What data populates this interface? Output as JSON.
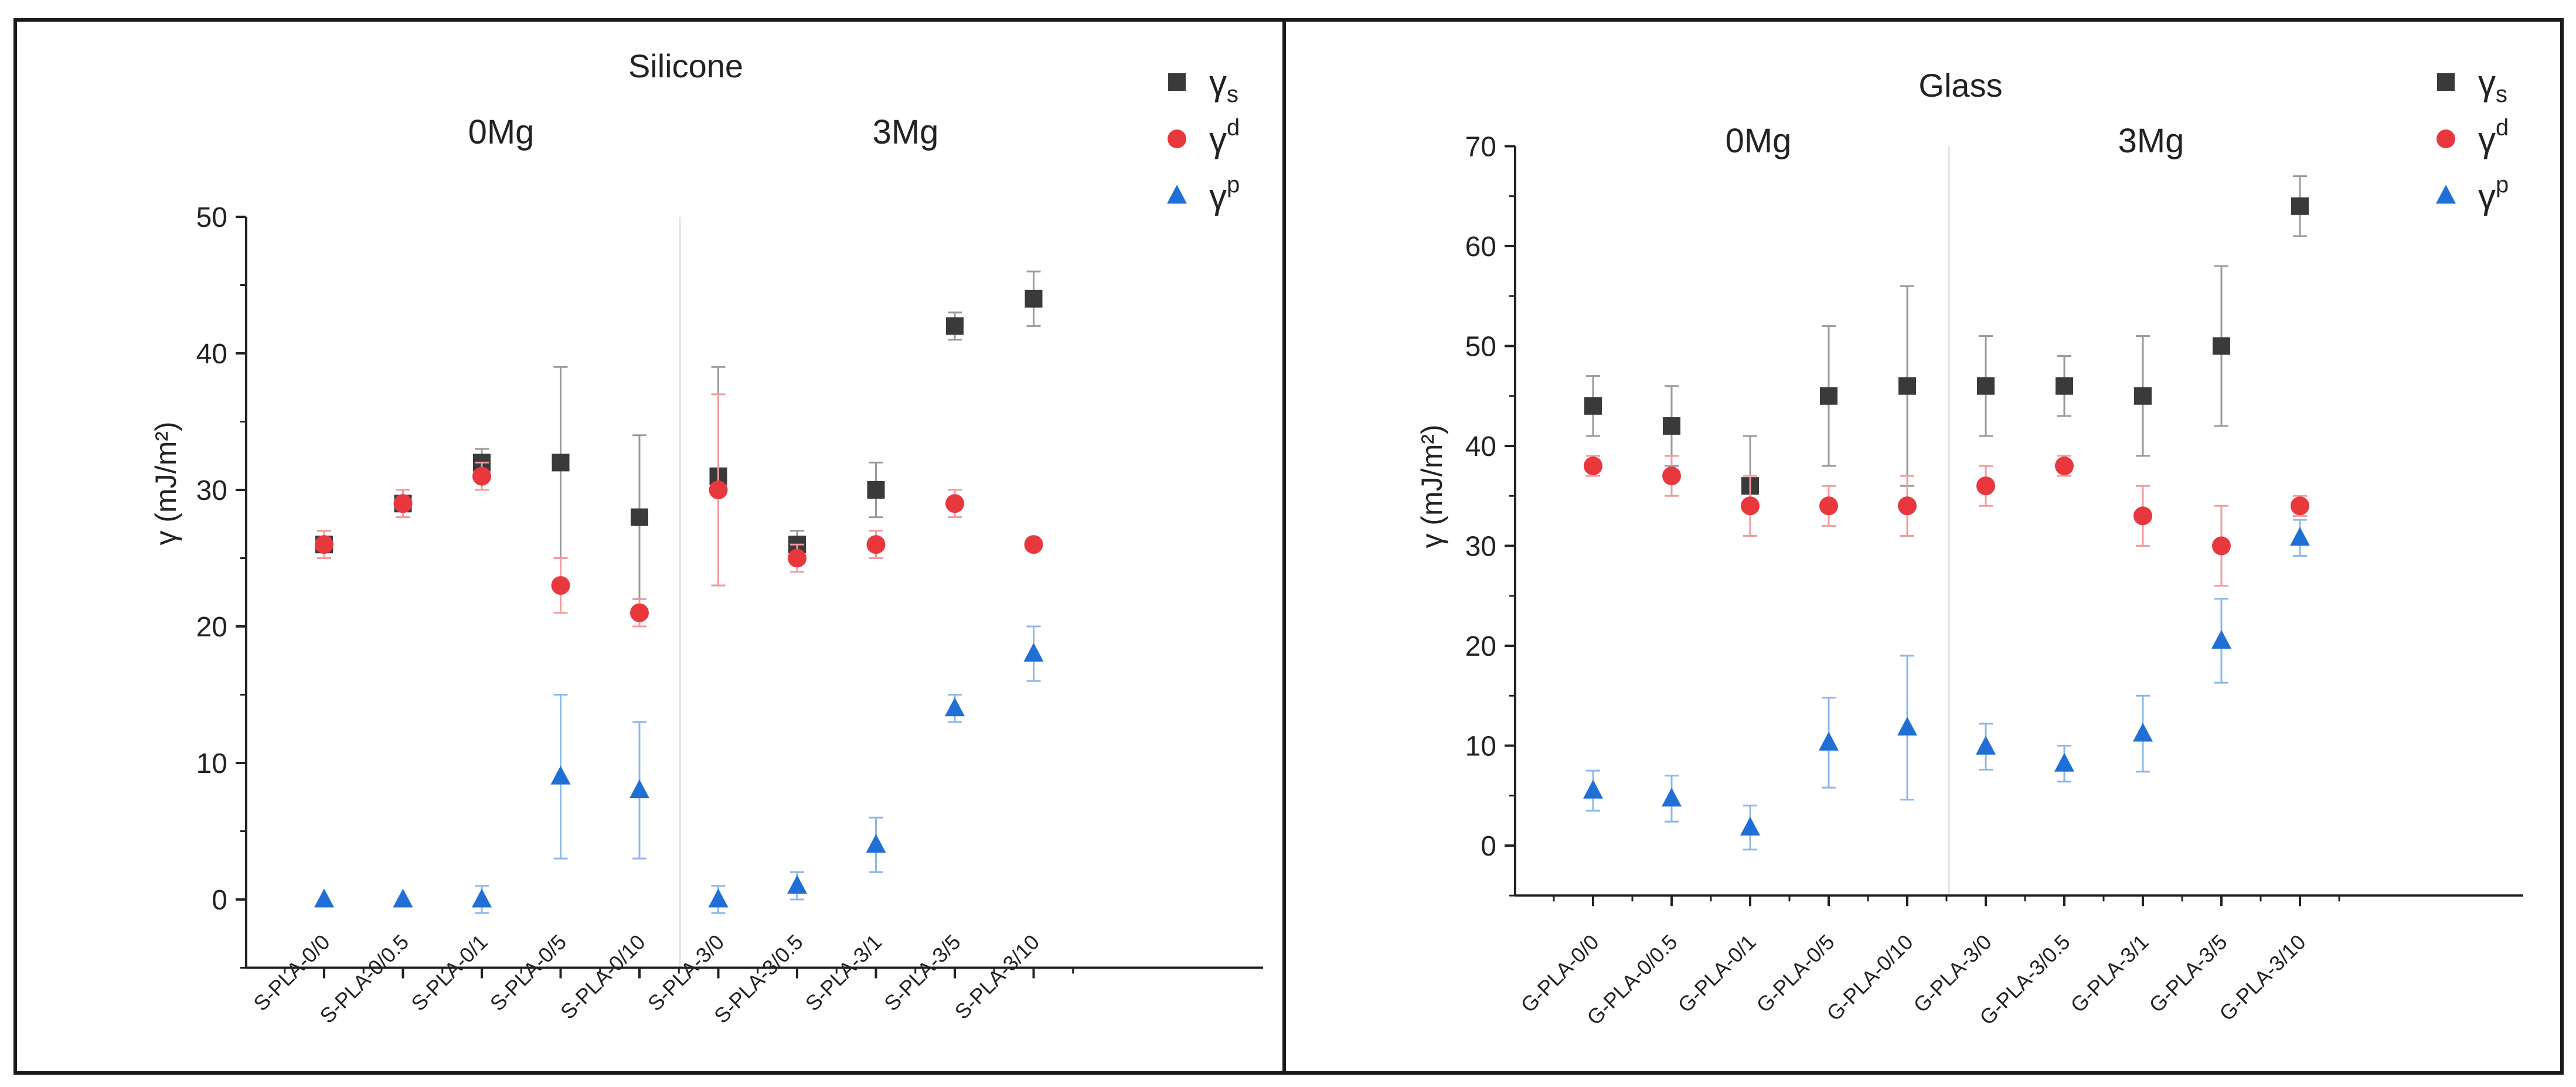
{
  "chart_data": [
    {
      "type": "scatter",
      "title": "Silicone",
      "ylabel": "γ (mJ/m²)",
      "xlabel": "",
      "ylim": [
        -5,
        50
      ],
      "yticks": [
        0,
        10,
        20,
        30,
        40,
        50
      ],
      "categories": [
        "S-PLA-0/0",
        "S-PLA-0/0.5",
        "S-PLA-0/1",
        "S-PLA-0/5",
        "S-PLA-0/10",
        "S-PLA-3/0",
        "S-PLA-3/0.5",
        "S-PLA-3/1",
        "S-PLA-3/5",
        "S-PLA-3/10"
      ],
      "groups": [
        {
          "label": "0Mg",
          "from": 0,
          "to": 4
        },
        {
          "label": "3Mg",
          "from": 5,
          "to": 9
        }
      ],
      "grid": false,
      "legend_position": "top-right",
      "series": [
        {
          "name": "γs",
          "legend_main": "γ",
          "legend_sub": "s",
          "legend_sup": "",
          "marker": "square",
          "color": "#3a3a3a",
          "errorColor": "#9a9a9a",
          "values": [
            26,
            29,
            32,
            32,
            28,
            31,
            26,
            30,
            42,
            44
          ],
          "errors": [
            1,
            1,
            1,
            7,
            6,
            8,
            1,
            2,
            1,
            2
          ]
        },
        {
          "name": "γd",
          "legend_main": "γ",
          "legend_sub": "",
          "legend_sup": "d",
          "marker": "circle",
          "color": "#e8383d",
          "errorColor": "#f29b9e",
          "values": [
            26,
            29,
            31,
            23,
            21,
            30,
            25,
            26,
            29,
            26
          ],
          "errors": [
            1,
            1,
            1,
            2,
            1,
            7,
            1,
            1,
            1,
            0
          ]
        },
        {
          "name": "γp",
          "legend_main": "γ",
          "legend_sub": "",
          "legend_sup": "p",
          "marker": "triangle",
          "color": "#1f6fd6",
          "errorColor": "#8db7ec",
          "values": [
            0,
            0,
            0,
            9,
            8,
            0,
            1,
            4,
            14,
            18
          ],
          "errors": [
            0,
            0,
            1,
            6,
            5,
            1,
            1,
            2,
            1,
            2
          ]
        }
      ]
    },
    {
      "type": "scatter",
      "title": "Glass",
      "ylabel": "γ (mJ/m²)",
      "xlabel": "",
      "ylim": [
        -5,
        70
      ],
      "yticks": [
        0,
        10,
        20,
        30,
        40,
        50,
        60,
        70
      ],
      "categories": [
        "G-PLA-0/0",
        "G-PLA-0/0.5",
        "G-PLA-0/1",
        "G-PLA-0/5",
        "G-PLA-0/10",
        "G-PLA-3/0",
        "G-PLA-3/0.5",
        "G-PLA-3/1",
        "G-PLA-3/5",
        "G-PLA-3/10"
      ],
      "groups": [
        {
          "label": "0Mg",
          "from": 0,
          "to": 4
        },
        {
          "label": "3Mg",
          "from": 5,
          "to": 9
        }
      ],
      "grid": false,
      "legend_position": "top-right",
      "series": [
        {
          "name": "γs",
          "legend_main": "γ",
          "legend_sub": "s",
          "legend_sup": "",
          "marker": "square",
          "color": "#3a3a3a",
          "errorColor": "#9a9a9a",
          "values": [
            44,
            42,
            36,
            45,
            46,
            46,
            46,
            45,
            50,
            64
          ],
          "errors": [
            3,
            4,
            5,
            7,
            10,
            5,
            3,
            6,
            8,
            3
          ]
        },
        {
          "name": "γd",
          "legend_main": "γ",
          "legend_sub": "",
          "legend_sup": "d",
          "marker": "circle",
          "color": "#e8383d",
          "errorColor": "#f29b9e",
          "values": [
            38,
            37,
            34,
            34,
            34,
            36,
            38,
            33,
            30,
            34
          ],
          "errors": [
            1,
            2,
            3,
            2,
            3,
            2,
            1,
            3,
            4,
            1
          ]
        },
        {
          "name": "γp",
          "legend_main": "γ",
          "legend_sub": "",
          "legend_sup": "p",
          "marker": "triangle",
          "color": "#1f6fd6",
          "errorColor": "#8db7ec",
          "values": [
            5.5,
            4.7,
            1.8,
            10.3,
            11.8,
            9.9,
            8.2,
            11.2,
            20.5,
            30.8
          ],
          "errors": [
            2,
            2.3,
            2.2,
            4.5,
            7.2,
            2.3,
            1.8,
            3.8,
            4.2,
            1.8
          ]
        }
      ]
    }
  ]
}
